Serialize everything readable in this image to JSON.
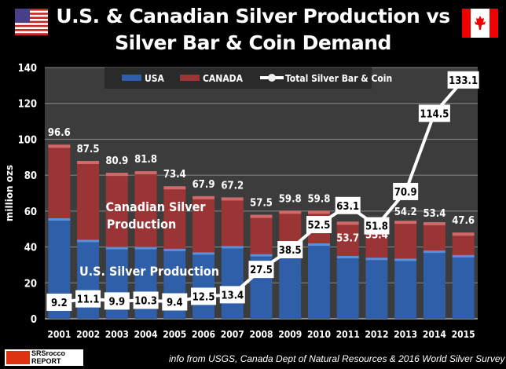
{
  "header": {
    "title_line1": "U.S. & Canadian Silver Production vs",
    "title_line2": "Silver Bar & Coin Demand",
    "left_flag": "usa-flag",
    "right_flag": "canada-flag"
  },
  "source": "info from USGS, Canada Dept of Natural Resources & 2016 World Silver Survey",
  "logo": {
    "line1": "SRSrocco",
    "line2": "REPORT"
  },
  "colors": {
    "usa": "#2e5fa8",
    "canada": "#9b3535",
    "line": "#ffffff",
    "plot_bg": "#3c3c3c"
  },
  "chart_data": {
    "type": "bar",
    "title": "U.S. & Canadian Silver Production vs Silver Bar & Coin Demand",
    "ylabel": "million ozs",
    "xlabel": "",
    "ylim": [
      0,
      140
    ],
    "yticks": [
      0,
      20,
      40,
      60,
      80,
      100,
      120,
      140
    ],
    "grid": true,
    "legend": "top",
    "categories": [
      "2001",
      "2002",
      "2003",
      "2004",
      "2005",
      "2006",
      "2007",
      "2008",
      "2009",
      "2010",
      "2011",
      "2012",
      "2013",
      "2014",
      "2015"
    ],
    "series": [
      {
        "name": "USA",
        "type": "stacked-bar",
        "values": [
          56,
          44,
          40,
          40,
          39,
          37,
          40.5,
          36,
          36,
          42,
          35,
          34,
          33.5,
          38,
          35.5
        ]
      },
      {
        "name": "CANADA",
        "type": "stacked-bar",
        "values": [
          40.6,
          43.5,
          40.9,
          41.8,
          34.4,
          30.9,
          26.7,
          21.5,
          23.8,
          17.8,
          18.7,
          21.4,
          20.7,
          15.4,
          12.1
        ]
      },
      {
        "name": "Total Silver Bar & Coin",
        "type": "line",
        "values": [
          9.2,
          11.1,
          9.9,
          10.3,
          9.4,
          12.5,
          13.4,
          27.5,
          38.5,
          52.5,
          63.1,
          51.8,
          70.9,
          114.5,
          133.1
        ]
      }
    ],
    "bar_total_labels": [
      "96.6",
      "87.5",
      "80.9",
      "81.8",
      "73.4",
      "67.9",
      "67.2",
      "57.5",
      "59.8",
      "59.8",
      "53.7",
      "55.4",
      "54.2",
      "53.4",
      "47.6"
    ],
    "annotations": [
      "Canadian Silver",
      "Production",
      "U.S. Silver Production"
    ]
  }
}
